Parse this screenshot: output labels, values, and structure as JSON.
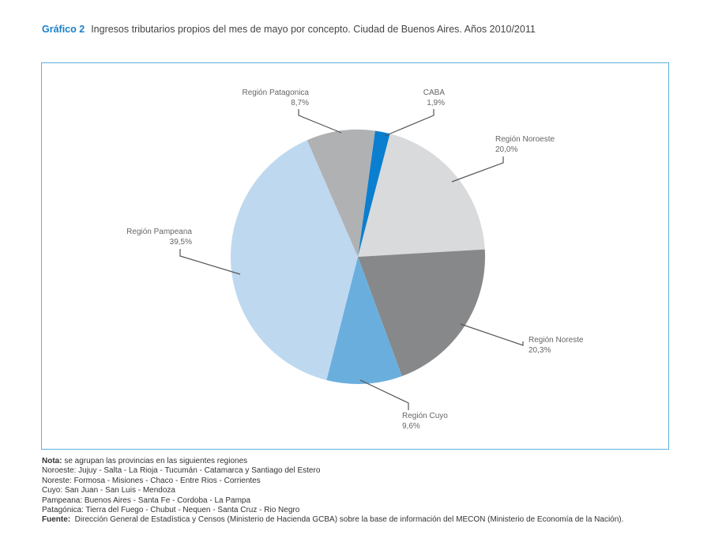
{
  "header": {
    "label": "Gráfico 2",
    "title": "Ingresos tributarios propios del mes de mayo por concepto. Ciudad de Buenos Aires. Años 2010/2011"
  },
  "chart_data": {
    "type": "pie",
    "title": "Ingresos tributarios propios del mes de mayo por concepto. Ciudad de Buenos Aires. Años 2010/2011",
    "start_angle_deg": 7.8,
    "slices": [
      {
        "name": "CABA",
        "value": 1.9,
        "label": "1,9%",
        "color": "#0b7fcf"
      },
      {
        "name": "Región Noroeste",
        "value": 20.0,
        "label": "20,0%",
        "color": "#d9dadc"
      },
      {
        "name": "Región Noreste",
        "value": 20.3,
        "label": "20,3%",
        "color": "#87888a"
      },
      {
        "name": "Región Cuyo",
        "value": 9.6,
        "label": "9,6%",
        "color": "#6aaedd"
      },
      {
        "name": "Región Pampeana",
        "value": 39.5,
        "label": "39,5%",
        "color": "#bed8f0"
      },
      {
        "name": "Región Patagonica",
        "value": 8.7,
        "label": "8,7%",
        "color": "#b0b1b3"
      }
    ]
  },
  "notes": {
    "nota_label": "Nota:",
    "nota": " se agrupan las provincias en las siguientes regiones",
    "lines": [
      "Noroeste: Jujuy - Salta - La Rioja - Tucumán - Catamarca y Santiago del Estero",
      "Noreste: Formosa - Misiones - Chaco - Entre Rios - Corrientes",
      "Cuyo: San Juan - San Luis - Mendoza",
      "Pampeana: Buenos Aires - Santa Fe - Cordoba - La Pampa",
      "Patagónica: Tierra del Fuego - Chubut - Nequen - Santa Cruz - Rio Negro"
    ],
    "fuente_label": "Fuente:",
    "fuente": "  Dirección General de Estadística y Censos (Ministerio de Hacienda GCBA) sobre la base de información del MECON (Ministerio de Economía de la Nación)."
  }
}
